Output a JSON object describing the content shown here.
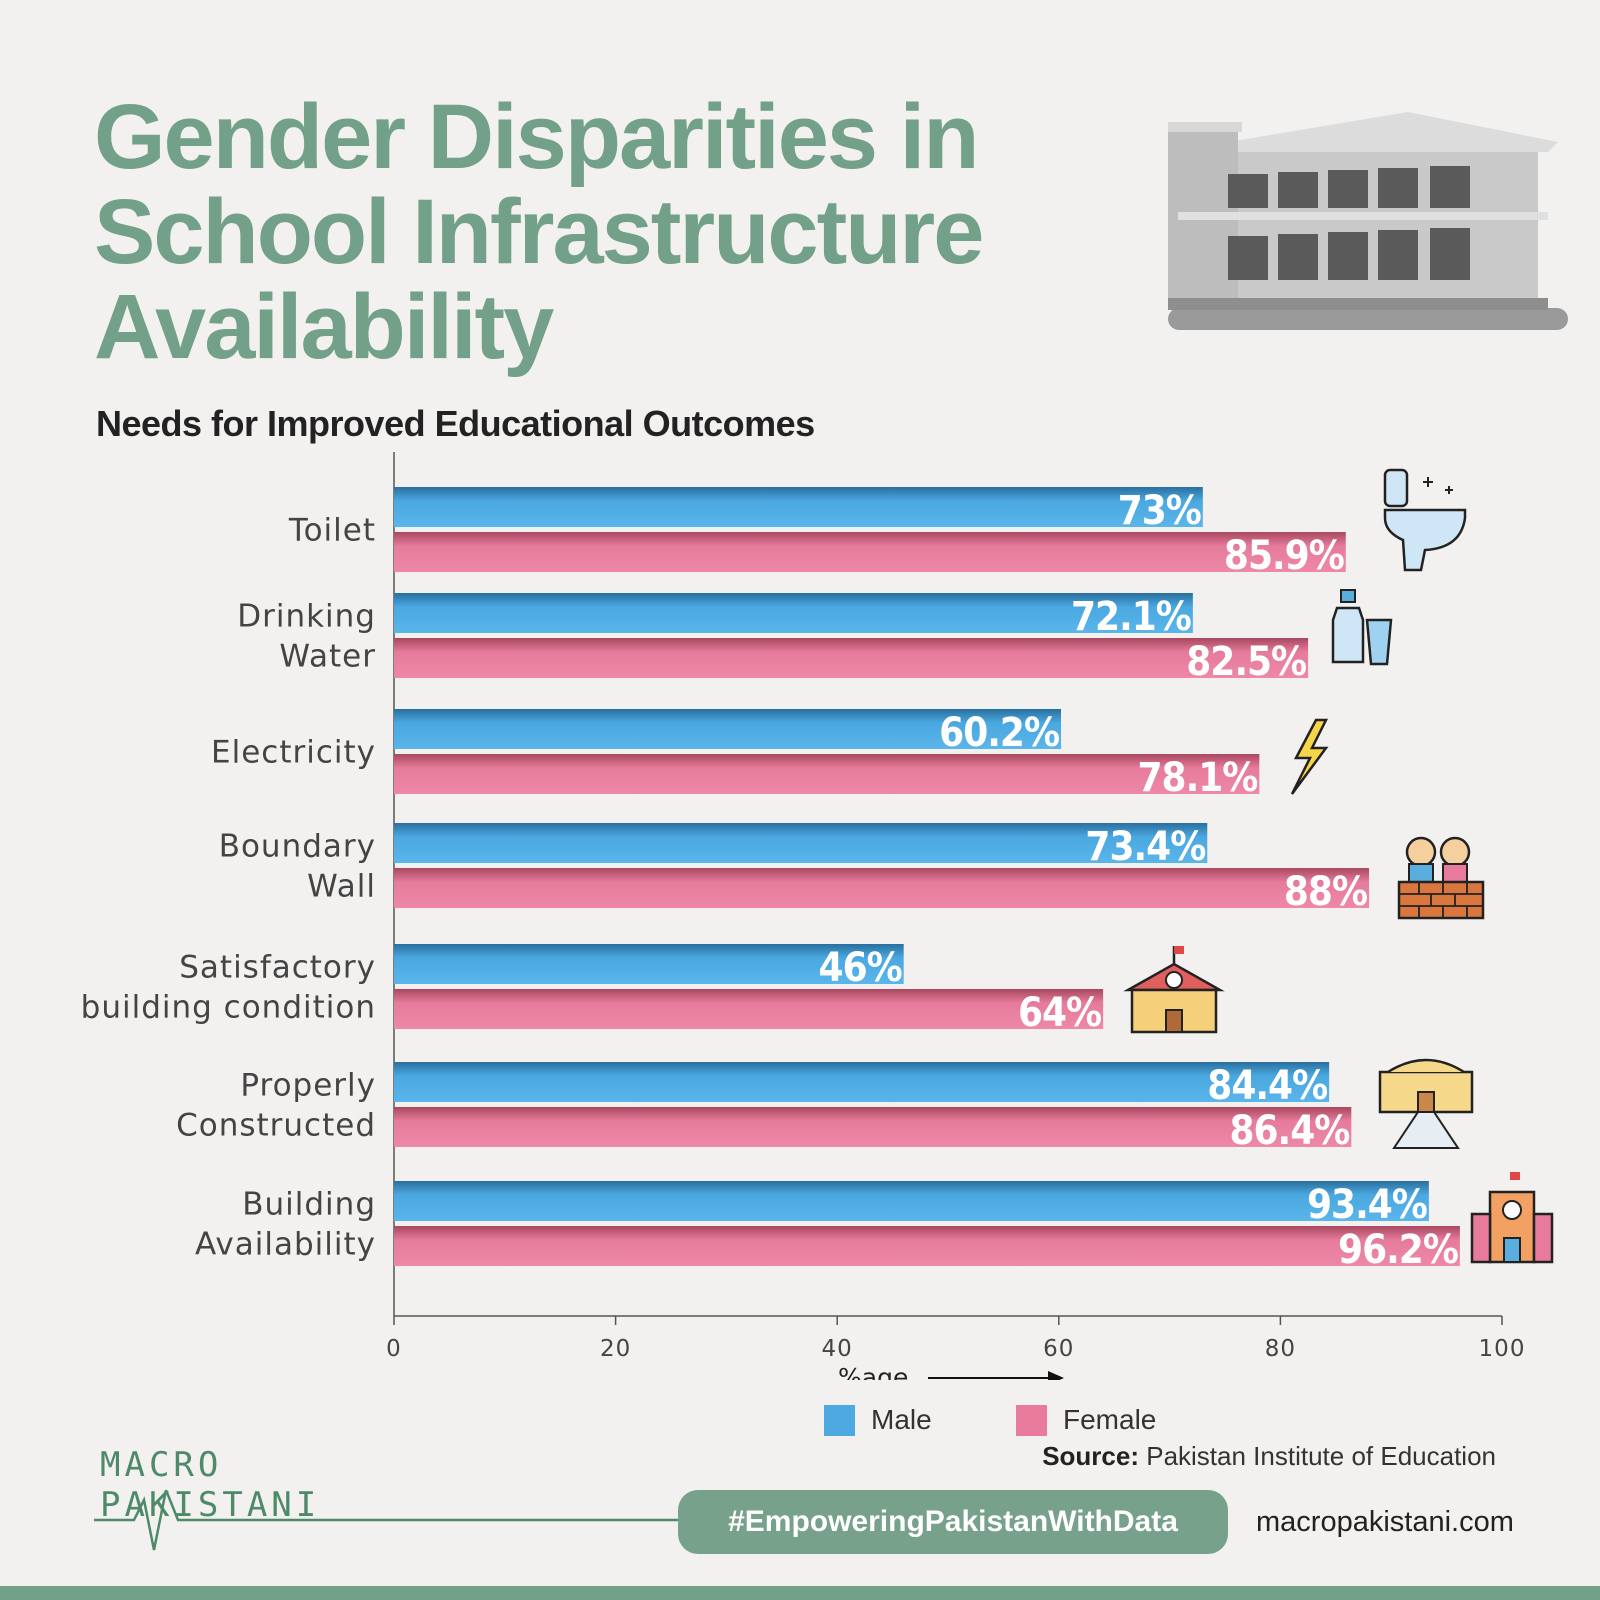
{
  "header": {
    "title_lines": [
      "Gender Disparities in",
      "School Infrastructure",
      "Availability"
    ],
    "subtitle": "Needs for Improved Educational Outcomes"
  },
  "chart_data": {
    "type": "bar",
    "orientation": "horizontal",
    "categories": [
      [
        "Toilet"
      ],
      [
        "Drinking",
        "Water"
      ],
      [
        "Electricity"
      ],
      [
        "Boundary",
        "Wall"
      ],
      [
        "Satisfactory",
        "building condition"
      ],
      [
        "Properly",
        "Constructed"
      ],
      [
        "Building",
        "Availability"
      ]
    ],
    "category_icons": [
      "toilet-icon",
      "water-bottle-icon",
      "lightning-icon",
      "children-wall-icon",
      "school-house-icon",
      "school-building-icon",
      "hospital-building-icon"
    ],
    "series": [
      {
        "name": "Male",
        "color": "#4da9df",
        "values": [
          73,
          72.1,
          60.2,
          73.4,
          46,
          84.4,
          93.4
        ],
        "labels": [
          "73%",
          "72.1%",
          "60.2%",
          "73.4%",
          "46%",
          "84.4%",
          "93.4%"
        ]
      },
      {
        "name": "Female",
        "color": "#e87b9c",
        "values": [
          85.9,
          82.5,
          78.1,
          88,
          64,
          86.4,
          96.2
        ],
        "labels": [
          "85.9%",
          "82.5%",
          "78.1%",
          "88%",
          "64%",
          "86.4%",
          "96.2%"
        ]
      }
    ],
    "xlim": [
      0,
      100
    ],
    "xticks": [
      0,
      20,
      40,
      60,
      80,
      100
    ],
    "xlabel": "%age",
    "grid": false,
    "legend_position": "bottom"
  },
  "legend": {
    "male": "Male",
    "female": "Female",
    "male_color": "#4da9df",
    "female_color": "#e87b9c"
  },
  "footer": {
    "source_label": "Source:",
    "source_text": " Pakistan Institute of Education",
    "logo_line1": "MACRO",
    "logo_line2": "PAKISTANI",
    "hashtag": "#EmpoweringPakistanWithData",
    "website": "macropakistani.com"
  }
}
